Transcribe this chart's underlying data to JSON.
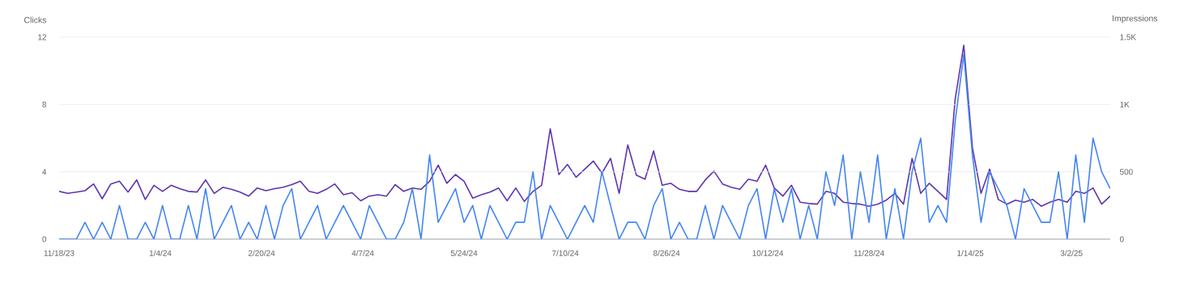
{
  "chart_data": {
    "type": "line",
    "ylabel": "Clicks",
    "y2label": "Impressions",
    "grid": "y",
    "x": [
      "2023-11-18",
      "2023-11-22",
      "2023-11-26",
      "2023-11-30",
      "2023-12-04",
      "2023-12-08",
      "2023-12-12",
      "2023-12-16",
      "2023-12-20",
      "2023-12-24",
      "2023-12-28",
      "2024-01-01",
      "2024-01-05",
      "2024-01-09",
      "2024-01-13",
      "2024-01-17",
      "2024-01-21",
      "2024-01-25",
      "2024-01-29",
      "2024-02-02",
      "2024-02-06",
      "2024-02-10",
      "2024-02-14",
      "2024-02-18",
      "2024-02-22",
      "2024-02-26",
      "2024-03-01",
      "2024-03-05",
      "2024-03-09",
      "2024-03-13",
      "2024-03-17",
      "2024-03-21",
      "2024-03-25",
      "2024-03-29",
      "2024-04-02",
      "2024-04-06",
      "2024-04-10",
      "2024-04-14",
      "2024-04-18",
      "2024-04-22",
      "2024-04-26",
      "2024-04-30",
      "2024-05-04",
      "2024-05-08",
      "2024-05-12",
      "2024-05-16",
      "2024-05-20",
      "2024-05-24",
      "2024-05-28",
      "2024-06-01",
      "2024-06-05",
      "2024-06-09",
      "2024-06-13",
      "2024-06-17",
      "2024-06-21",
      "2024-06-25",
      "2024-06-29",
      "2024-07-03",
      "2024-07-07",
      "2024-07-11",
      "2024-07-15",
      "2024-07-19",
      "2024-07-23",
      "2024-07-27",
      "2024-07-31",
      "2024-08-04",
      "2024-08-08",
      "2024-08-12",
      "2024-08-16",
      "2024-08-20",
      "2024-08-24",
      "2024-08-28",
      "2024-09-01",
      "2024-09-05",
      "2024-09-09",
      "2024-09-13",
      "2024-09-17",
      "2024-09-21",
      "2024-09-25",
      "2024-09-29",
      "2024-10-03",
      "2024-10-07",
      "2024-10-11",
      "2024-10-15",
      "2024-10-19",
      "2024-10-23",
      "2024-10-27",
      "2024-10-31",
      "2024-11-04",
      "2024-11-08",
      "2024-11-12",
      "2024-11-16",
      "2024-11-20",
      "2024-11-24",
      "2024-11-28",
      "2024-12-02",
      "2024-12-06",
      "2024-12-10",
      "2024-12-14",
      "2024-12-18",
      "2024-12-22",
      "2024-12-26",
      "2024-12-30",
      "2025-01-03",
      "2025-01-07",
      "2025-01-11",
      "2025-01-15",
      "2025-01-19",
      "2025-01-23",
      "2025-01-27",
      "2025-01-31",
      "2025-02-04",
      "2025-02-08",
      "2025-02-12",
      "2025-02-16",
      "2025-02-20",
      "2025-02-24",
      "2025-02-28",
      "2025-03-04",
      "2025-03-08",
      "2025-03-12",
      "2025-03-16",
      "2025-03-20"
    ],
    "xlim": [
      "2023-11-18",
      "2025-03-20"
    ],
    "xticks": [
      {
        "value": "2023-11-18",
        "label": "11/18/23"
      },
      {
        "value": "2024-01-04",
        "label": "1/4/24"
      },
      {
        "value": "2024-02-20",
        "label": "2/20/24"
      },
      {
        "value": "2024-04-07",
        "label": "4/7/24"
      },
      {
        "value": "2024-05-24",
        "label": "5/24/24"
      },
      {
        "value": "2024-07-10",
        "label": "7/10/24"
      },
      {
        "value": "2024-08-26",
        "label": "8/26/24"
      },
      {
        "value": "2024-10-12",
        "label": "10/12/24"
      },
      {
        "value": "2024-11-28",
        "label": "11/28/24"
      },
      {
        "value": "2025-01-14",
        "label": "1/14/25"
      },
      {
        "value": "2025-03-02",
        "label": "3/2/25"
      }
    ],
    "ylim": [
      0,
      12
    ],
    "yticks": [
      0,
      4,
      8,
      12
    ],
    "y2lim": [
      0,
      1500
    ],
    "y2ticks": [
      0,
      500,
      {
        "value": 1000,
        "label": "1K"
      },
      {
        "value": 1500,
        "label": "1.5K"
      }
    ],
    "series": [
      {
        "color": "#4285f4",
        "values": [
          0,
          0,
          0,
          1,
          0,
          1,
          0,
          2,
          0,
          0,
          1,
          0,
          2,
          0,
          0,
          2,
          0,
          3,
          0,
          1,
          2,
          0,
          1,
          0,
          2,
          0,
          2,
          3,
          0,
          1,
          2,
          0,
          1,
          2,
          1,
          0,
          2,
          1,
          0,
          0,
          1,
          3,
          0,
          5,
          1,
          2,
          3,
          1,
          2,
          0,
          2,
          1,
          0,
          1,
          1,
          4,
          0,
          2,
          1,
          0,
          1,
          2,
          1,
          4,
          2,
          0,
          1,
          1,
          0,
          2,
          3,
          0,
          1,
          0,
          0,
          2,
          0,
          2,
          1,
          0,
          2,
          3,
          0,
          3,
          1,
          3,
          0,
          2,
          0,
          4,
          2,
          5,
          0,
          4,
          1,
          5,
          0,
          3,
          0,
          4,
          6,
          1,
          2,
          1,
          7,
          11,
          5,
          1,
          4,
          3,
          2,
          0,
          3,
          2,
          1,
          1,
          4,
          0,
          5,
          1,
          6,
          4,
          3
        ]
      },
      {
        "color": "#5e35b1",
        "axis": "y2",
        "values": [
          355,
          340,
          350,
          360,
          410,
          300,
          410,
          430,
          350,
          440,
          295,
          400,
          355,
          400,
          375,
          355,
          350,
          440,
          340,
          385,
          370,
          350,
          320,
          380,
          360,
          375,
          385,
          405,
          430,
          355,
          340,
          370,
          410,
          330,
          345,
          285,
          320,
          330,
          320,
          405,
          355,
          380,
          370,
          430,
          550,
          415,
          480,
          430,
          305,
          330,
          350,
          380,
          285,
          380,
          280,
          355,
          400,
          820,
          480,
          555,
          460,
          520,
          580,
          490,
          600,
          340,
          700,
          475,
          445,
          655,
          400,
          415,
          370,
          355,
          355,
          440,
          505,
          410,
          385,
          370,
          445,
          430,
          550,
          380,
          320,
          400,
          275,
          265,
          260,
          355,
          340,
          275,
          265,
          260,
          245,
          260,
          290,
          340,
          260,
          600,
          340,
          415,
          355,
          295,
          1040,
          1440,
          680,
          340,
          520,
          295,
          260,
          290,
          275,
          295,
          245,
          275,
          295,
          275,
          355,
          340,
          380,
          260,
          320
        ]
      }
    ]
  }
}
